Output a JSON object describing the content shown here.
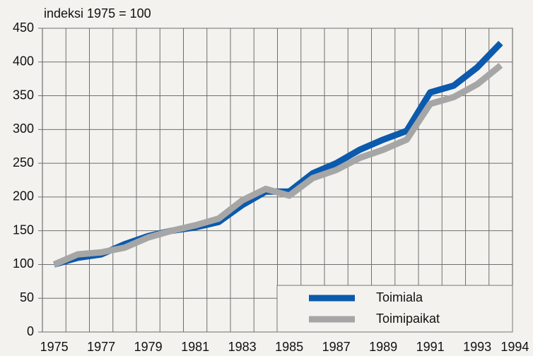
{
  "chart_data": {
    "type": "line",
    "title": "indeksi 1975 = 100",
    "x": [
      1975,
      1976,
      1977,
      1978,
      1979,
      1980,
      1981,
      1982,
      1983,
      1984,
      1985,
      1986,
      1987,
      1988,
      1989,
      1990,
      1991,
      1992,
      1993,
      1994
    ],
    "series": [
      {
        "name": "Toimiala",
        "color": "#0b5aad",
        "values": [
          100,
          110,
          115,
          130,
          142,
          150,
          155,
          163,
          188,
          208,
          208,
          235,
          250,
          270,
          285,
          298,
          355,
          365,
          392,
          428
        ]
      },
      {
        "name": "Toimipaikat",
        "color": "#a6a6a6",
        "values": [
          100,
          115,
          118,
          125,
          140,
          150,
          158,
          168,
          195,
          212,
          202,
          228,
          240,
          258,
          270,
          285,
          338,
          348,
          367,
          395
        ]
      }
    ],
    "xlim": [
      1974.5,
      1994.5
    ],
    "xticks": [
      1975,
      1977,
      1979,
      1981,
      1983,
      1985,
      1987,
      1989,
      1991,
      1993,
      1994
    ],
    "ylim": [
      0,
      450
    ],
    "yticks": [
      0,
      50,
      100,
      150,
      200,
      250,
      300,
      350,
      400,
      450
    ],
    "grid": true,
    "legend": "lower right"
  }
}
